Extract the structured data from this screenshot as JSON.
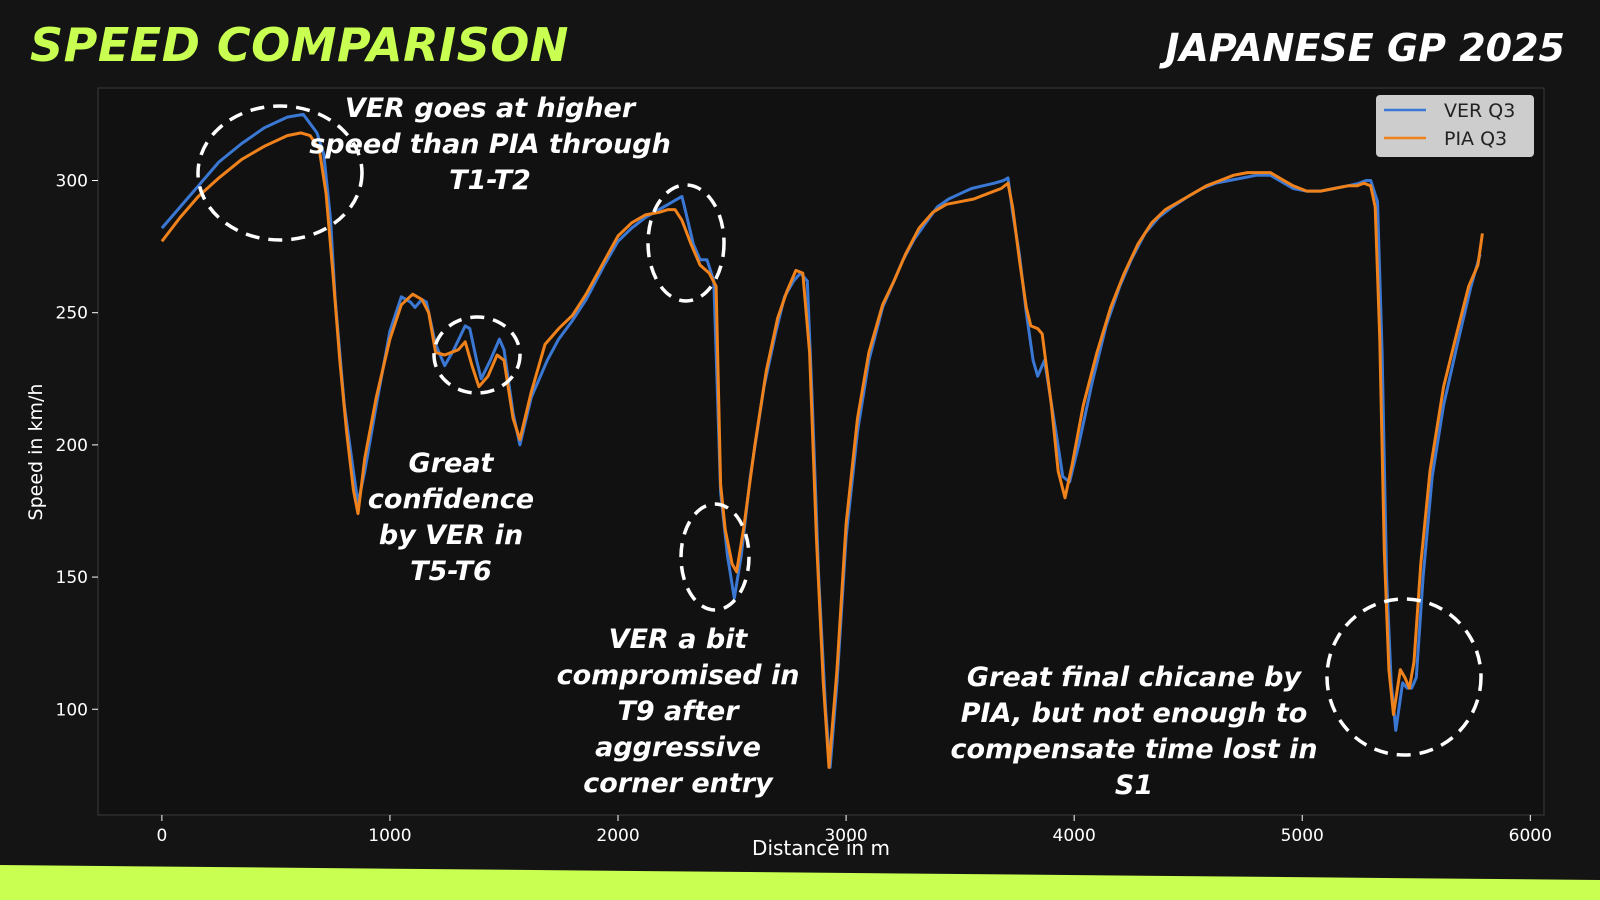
{
  "header": {
    "title": "SPEED COMPARISON",
    "subtitle": "JAPANESE GP 2025"
  },
  "colors": {
    "accent": "#c8ff50",
    "ver": "#3a78d4",
    "pia": "#f0821c",
    "background": "#141414",
    "plot_background": "#111111"
  },
  "chart_data": {
    "type": "line",
    "xlabel": "Distance in m",
    "ylabel": "Speed in km/h",
    "xlim": [
      -280,
      6060
    ],
    "ylim": [
      60,
      335
    ],
    "xticks": [
      0,
      1000,
      2000,
      3000,
      4000,
      5000,
      6000
    ],
    "yticks": [
      100,
      150,
      200,
      250,
      300
    ],
    "grid": false,
    "legend_position": "top-right",
    "series": [
      {
        "name": "VER Q3",
        "color": "#3a78d4",
        "points": [
          [
            0,
            282
          ],
          [
            80,
            290
          ],
          [
            160,
            298
          ],
          [
            250,
            307
          ],
          [
            350,
            314
          ],
          [
            450,
            320
          ],
          [
            550,
            324
          ],
          [
            620,
            325
          ],
          [
            680,
            318
          ],
          [
            710,
            310
          ],
          [
            740,
            285
          ],
          [
            760,
            255
          ],
          [
            800,
            215
          ],
          [
            840,
            190
          ],
          [
            860,
            178
          ],
          [
            890,
            190
          ],
          [
            940,
            215
          ],
          [
            1000,
            243
          ],
          [
            1050,
            256
          ],
          [
            1090,
            254
          ],
          [
            1110,
            252
          ],
          [
            1140,
            255
          ],
          [
            1160,
            254
          ],
          [
            1200,
            238
          ],
          [
            1240,
            230
          ],
          [
            1280,
            236
          ],
          [
            1330,
            245
          ],
          [
            1350,
            244
          ],
          [
            1380,
            232
          ],
          [
            1400,
            225
          ],
          [
            1440,
            232
          ],
          [
            1480,
            240
          ],
          [
            1500,
            236
          ],
          [
            1540,
            212
          ],
          [
            1570,
            200
          ],
          [
            1620,
            218
          ],
          [
            1690,
            232
          ],
          [
            1740,
            240
          ],
          [
            1800,
            247
          ],
          [
            1860,
            255
          ],
          [
            1940,
            268
          ],
          [
            2000,
            277
          ],
          [
            2060,
            282
          ],
          [
            2120,
            286
          ],
          [
            2180,
            289
          ],
          [
            2240,
            292
          ],
          [
            2280,
            294
          ],
          [
            2300,
            287
          ],
          [
            2330,
            276
          ],
          [
            2360,
            270
          ],
          [
            2390,
            270
          ],
          [
            2420,
            262
          ],
          [
            2450,
            182
          ],
          [
            2480,
            158
          ],
          [
            2510,
            142
          ],
          [
            2540,
            158
          ],
          [
            2580,
            188
          ],
          [
            2640,
            222
          ],
          [
            2690,
            242
          ],
          [
            2730,
            256
          ],
          [
            2770,
            262
          ],
          [
            2800,
            265
          ],
          [
            2830,
            262
          ],
          [
            2850,
            220
          ],
          [
            2880,
            150
          ],
          [
            2910,
            100
          ],
          [
            2930,
            78
          ],
          [
            2960,
            110
          ],
          [
            3000,
            165
          ],
          [
            3050,
            205
          ],
          [
            3100,
            232
          ],
          [
            3160,
            252
          ],
          [
            3200,
            260
          ],
          [
            3250,
            270
          ],
          [
            3300,
            278
          ],
          [
            3350,
            284
          ],
          [
            3400,
            290
          ],
          [
            3450,
            293
          ],
          [
            3500,
            295
          ],
          [
            3550,
            297
          ],
          [
            3600,
            298
          ],
          [
            3650,
            299
          ],
          [
            3690,
            300
          ],
          [
            3710,
            301
          ],
          [
            3730,
            288
          ],
          [
            3760,
            272
          ],
          [
            3790,
            250
          ],
          [
            3820,
            232
          ],
          [
            3840,
            226
          ],
          [
            3870,
            232
          ],
          [
            3920,
            205
          ],
          [
            3950,
            188
          ],
          [
            3980,
            186
          ],
          [
            4020,
            200
          ],
          [
            4080,
            224
          ],
          [
            4140,
            245
          ],
          [
            4200,
            260
          ],
          [
            4250,
            270
          ],
          [
            4310,
            280
          ],
          [
            4370,
            286
          ],
          [
            4430,
            290
          ],
          [
            4500,
            294
          ],
          [
            4560,
            297
          ],
          [
            4620,
            299
          ],
          [
            4680,
            300
          ],
          [
            4740,
            301
          ],
          [
            4800,
            302
          ],
          [
            4860,
            302
          ],
          [
            4900,
            300
          ],
          [
            4960,
            297
          ],
          [
            5020,
            296
          ],
          [
            5080,
            296
          ],
          [
            5140,
            297
          ],
          [
            5200,
            298
          ],
          [
            5250,
            299
          ],
          [
            5280,
            300
          ],
          [
            5300,
            300
          ],
          [
            5330,
            292
          ],
          [
            5350,
            235
          ],
          [
            5370,
            150
          ],
          [
            5390,
            110
          ],
          [
            5410,
            92
          ],
          [
            5440,
            110
          ],
          [
            5460,
            108
          ],
          [
            5480,
            108
          ],
          [
            5500,
            112
          ],
          [
            5530,
            150
          ],
          [
            5570,
            188
          ],
          [
            5620,
            215
          ],
          [
            5680,
            238
          ],
          [
            5740,
            260
          ],
          [
            5780,
            272
          ]
        ]
      },
      {
        "name": "PIA Q3",
        "color": "#f0821c",
        "points": [
          [
            0,
            277
          ],
          [
            80,
            286
          ],
          [
            160,
            294
          ],
          [
            250,
            301
          ],
          [
            350,
            308
          ],
          [
            450,
            313
          ],
          [
            550,
            317
          ],
          [
            610,
            318
          ],
          [
            650,
            317
          ],
          [
            690,
            312
          ],
          [
            720,
            295
          ],
          [
            750,
            265
          ],
          [
            780,
            232
          ],
          [
            810,
            205
          ],
          [
            840,
            183
          ],
          [
            860,
            174
          ],
          [
            890,
            195
          ],
          [
            940,
            218
          ],
          [
            1000,
            240
          ],
          [
            1050,
            253
          ],
          [
            1100,
            257
          ],
          [
            1140,
            255
          ],
          [
            1170,
            250
          ],
          [
            1200,
            235
          ],
          [
            1240,
            234
          ],
          [
            1300,
            236
          ],
          [
            1330,
            239
          ],
          [
            1360,
            230
          ],
          [
            1390,
            222
          ],
          [
            1430,
            226
          ],
          [
            1470,
            234
          ],
          [
            1500,
            232
          ],
          [
            1540,
            210
          ],
          [
            1570,
            202
          ],
          [
            1620,
            220
          ],
          [
            1680,
            238
          ],
          [
            1740,
            244
          ],
          [
            1800,
            249
          ],
          [
            1860,
            257
          ],
          [
            1930,
            268
          ],
          [
            2000,
            279
          ],
          [
            2060,
            284
          ],
          [
            2120,
            287
          ],
          [
            2180,
            288
          ],
          [
            2220,
            289
          ],
          [
            2250,
            289
          ],
          [
            2280,
            285
          ],
          [
            2320,
            276
          ],
          [
            2360,
            268
          ],
          [
            2400,
            265
          ],
          [
            2430,
            260
          ],
          [
            2450,
            185
          ],
          [
            2470,
            168
          ],
          [
            2500,
            155
          ],
          [
            2520,
            152
          ],
          [
            2550,
            168
          ],
          [
            2600,
            200
          ],
          [
            2650,
            228
          ],
          [
            2700,
            248
          ],
          [
            2740,
            258
          ],
          [
            2780,
            266
          ],
          [
            2810,
            265
          ],
          [
            2840,
            235
          ],
          [
            2870,
            165
          ],
          [
            2900,
            110
          ],
          [
            2925,
            78
          ],
          [
            2960,
            115
          ],
          [
            3000,
            170
          ],
          [
            3050,
            210
          ],
          [
            3100,
            235
          ],
          [
            3160,
            253
          ],
          [
            3210,
            262
          ],
          [
            3260,
            272
          ],
          [
            3320,
            282
          ],
          [
            3380,
            288
          ],
          [
            3440,
            291
          ],
          [
            3500,
            292
          ],
          [
            3560,
            293
          ],
          [
            3620,
            295
          ],
          [
            3680,
            297
          ],
          [
            3710,
            299
          ],
          [
            3730,
            290
          ],
          [
            3760,
            270
          ],
          [
            3790,
            252
          ],
          [
            3810,
            245
          ],
          [
            3840,
            244
          ],
          [
            3860,
            242
          ],
          [
            3900,
            215
          ],
          [
            3930,
            190
          ],
          [
            3960,
            180
          ],
          [
            3990,
            192
          ],
          [
            4040,
            215
          ],
          [
            4100,
            235
          ],
          [
            4160,
            252
          ],
          [
            4220,
            265
          ],
          [
            4280,
            276
          ],
          [
            4340,
            284
          ],
          [
            4400,
            289
          ],
          [
            4460,
            292
          ],
          [
            4520,
            295
          ],
          [
            4580,
            298
          ],
          [
            4640,
            300
          ],
          [
            4700,
            302
          ],
          [
            4760,
            303
          ],
          [
            4820,
            303
          ],
          [
            4860,
            303
          ],
          [
            4900,
            301
          ],
          [
            4960,
            298
          ],
          [
            5020,
            296
          ],
          [
            5080,
            296
          ],
          [
            5140,
            297
          ],
          [
            5200,
            298
          ],
          [
            5240,
            298
          ],
          [
            5270,
            299
          ],
          [
            5300,
            298
          ],
          [
            5320,
            290
          ],
          [
            5340,
            240
          ],
          [
            5360,
            160
          ],
          [
            5380,
            115
          ],
          [
            5400,
            98
          ],
          [
            5430,
            115
          ],
          [
            5450,
            112
          ],
          [
            5470,
            108
          ],
          [
            5490,
            118
          ],
          [
            5520,
            155
          ],
          [
            5560,
            190
          ],
          [
            5620,
            222
          ],
          [
            5680,
            243
          ],
          [
            5730,
            260
          ],
          [
            5770,
            268
          ],
          [
            5790,
            280
          ]
        ]
      }
    ],
    "annotations": [
      "VER goes at higher speed than PIA through T1-T2",
      "Great confidence by VER in T5-T6",
      "VER a bit compromised in T9 after aggressive corner entry",
      "Great final chicane by PIA, but not enough to compensate time lost in S1"
    ]
  }
}
